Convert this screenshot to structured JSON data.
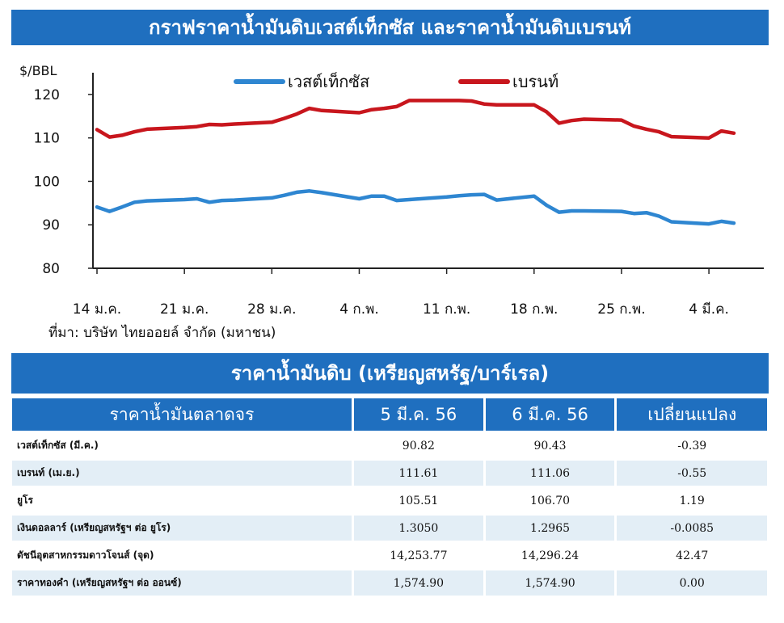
{
  "chart_banner": "กราฟราคาน้ำมันดิบเวสต์เท็กซัส และราคาน้ำมันดิบเบรนท์",
  "source": "ที่มา: บริษัท ไทยออยล์ จำกัด (มหาชน)",
  "chart_data": {
    "type": "line",
    "ylabel": "$/BBL",
    "ylim": [
      80,
      125
    ],
    "yticks": [
      80,
      90,
      100,
      110,
      120
    ],
    "xlim": [
      0,
      51
    ],
    "xticks": [
      {
        "label": "14 ม.ค.",
        "x": 0
      },
      {
        "label": "21 ม.ค.",
        "x": 7
      },
      {
        "label": "28 ม.ค.",
        "x": 14
      },
      {
        "label": "4 ก.พ.",
        "x": 21
      },
      {
        "label": "11 ก.พ.",
        "x": 28
      },
      {
        "label": "18 ก.พ.",
        "x": 35
      },
      {
        "label": "25 ก.พ.",
        "x": 42
      },
      {
        "label": "4 มี.ค.",
        "x": 49
      }
    ],
    "legend_position": "top-center",
    "grid": false,
    "series": [
      {
        "name": "เวสต์เท็กซัส",
        "color": "#2e86d1",
        "points": [
          [
            0,
            94.1
          ],
          [
            1,
            93.1
          ],
          [
            2,
            94.1
          ],
          [
            3,
            95.2
          ],
          [
            4,
            95.5
          ],
          [
            7,
            95.8
          ],
          [
            8,
            96.0
          ],
          [
            9,
            95.2
          ],
          [
            10,
            95.6
          ],
          [
            11,
            95.7
          ],
          [
            14,
            96.2
          ],
          [
            15,
            96.8
          ],
          [
            16,
            97.5
          ],
          [
            17,
            97.8
          ],
          [
            18,
            97.4
          ],
          [
            21,
            96.0
          ],
          [
            22,
            96.6
          ],
          [
            23,
            96.6
          ],
          [
            24,
            95.6
          ],
          [
            25,
            95.8
          ],
          [
            28,
            96.4
          ],
          [
            29,
            96.7
          ],
          [
            30,
            96.9
          ],
          [
            31,
            97.0
          ],
          [
            32,
            95.7
          ],
          [
            35,
            96.6
          ],
          [
            36,
            94.5
          ],
          [
            37,
            92.9
          ],
          [
            38,
            93.2
          ],
          [
            39,
            93.2
          ],
          [
            42,
            93.1
          ],
          [
            43,
            92.6
          ],
          [
            44,
            92.8
          ],
          [
            45,
            92.0
          ],
          [
            46,
            90.7
          ],
          [
            49,
            90.2
          ],
          [
            50,
            90.8
          ],
          [
            51,
            90.4
          ]
        ]
      },
      {
        "name": "เบรนท์",
        "color": "#c8161d",
        "points": [
          [
            0,
            111.9
          ],
          [
            1,
            110.2
          ],
          [
            2,
            110.6
          ],
          [
            3,
            111.4
          ],
          [
            4,
            112.0
          ],
          [
            7,
            112.4
          ],
          [
            8,
            112.6
          ],
          [
            9,
            113.1
          ],
          [
            10,
            113.0
          ],
          [
            11,
            113.2
          ],
          [
            14,
            113.6
          ],
          [
            15,
            114.5
          ],
          [
            16,
            115.5
          ],
          [
            17,
            116.8
          ],
          [
            18,
            116.3
          ],
          [
            21,
            115.8
          ],
          [
            22,
            116.5
          ],
          [
            23,
            116.8
          ],
          [
            24,
            117.2
          ],
          [
            25,
            118.6
          ],
          [
            28,
            118.6
          ],
          [
            29,
            118.6
          ],
          [
            30,
            118.5
          ],
          [
            31,
            117.8
          ],
          [
            32,
            117.6
          ],
          [
            35,
            117.6
          ],
          [
            36,
            116.0
          ],
          [
            37,
            113.4
          ],
          [
            38,
            114.0
          ],
          [
            39,
            114.3
          ],
          [
            42,
            114.1
          ],
          [
            43,
            112.7
          ],
          [
            44,
            112.0
          ],
          [
            45,
            111.4
          ],
          [
            46,
            110.3
          ],
          [
            49,
            110.0
          ],
          [
            50,
            111.6
          ],
          [
            51,
            111.1
          ]
        ]
      }
    ]
  },
  "table": {
    "title": "ราคาน้ำมันดิบ (เหรียญสหรัฐ/บาร์เรล)",
    "headers": [
      "ราคาน้ำมันตลาดจร",
      "5 มี.ค. 56",
      "6 มี.ค. 56",
      "เปลี่ยนแปลง"
    ],
    "rows": [
      [
        "เวสต์เท็กซัส (มี.ค.)",
        "90.82",
        "90.43",
        "-0.39"
      ],
      [
        "เบรนท์ (เม.ย.)",
        "111.61",
        "111.06",
        "-0.55"
      ],
      [
        "ยูโร",
        "105.51",
        "106.70",
        "1.19"
      ],
      [
        "เงินดอลลาร์ (เหรียญสหรัฐฯ ต่อ ยูโร)",
        "1.3050",
        "1.2965",
        "-0.0085"
      ],
      [
        "ดัชนีอุตสาหกรรมดาวโจนส์ (จุด)",
        "14,253.77",
        "14,296.24",
        "42.47"
      ],
      [
        "ราคาทองคำ (เหรียญสหรัฐฯ ต่อ ออนซ์)",
        "1,574.90",
        "1,574.90",
        "0.00"
      ]
    ]
  }
}
